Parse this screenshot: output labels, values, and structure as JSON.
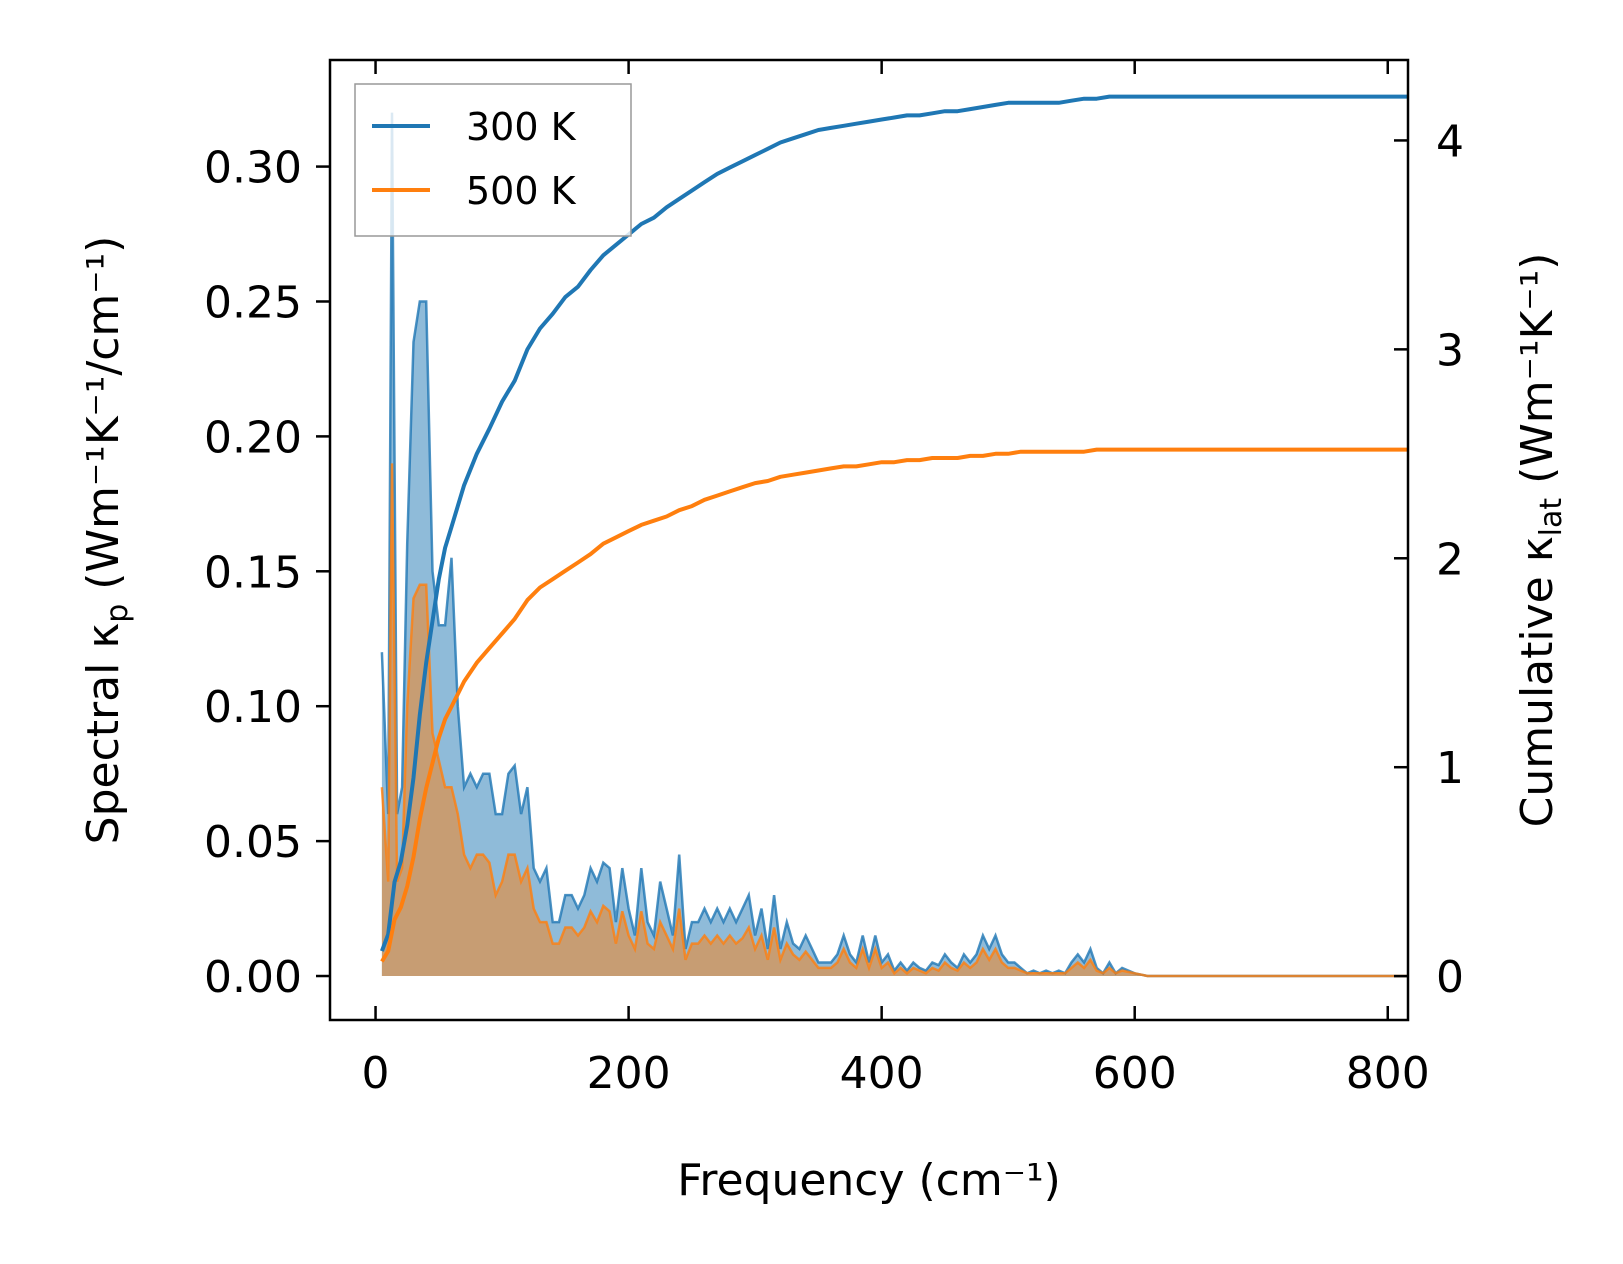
{
  "chart_data": {
    "type": "line",
    "title": "",
    "xlabel": "Frequency (cm⁻¹)",
    "ylabel_left": {
      "prefix": "Spectral κ",
      "sub": "p",
      "suffix": " (Wm⁻¹K⁻¹/cm⁻¹)"
    },
    "ylabel_right": {
      "prefix": "Cumulative κ",
      "sub": "lat",
      "suffix": " (Wm⁻¹K⁻¹)"
    },
    "xlim": [
      -36,
      816
    ],
    "ylim_left": [
      -0.0163,
      0.3395
    ],
    "ylim_right": [
      -0.21,
      4.385
    ],
    "x_ticks": [
      "0",
      "200",
      "400",
      "600",
      "800"
    ],
    "y_left_ticks": [
      "0.00",
      "0.05",
      "0.10",
      "0.15",
      "0.20",
      "0.25",
      "0.30"
    ],
    "y_right_ticks": [
      "0",
      "1",
      "2",
      "3",
      "4"
    ],
    "legend": {
      "position": "top-left",
      "entries": [
        "300 K",
        "500 K"
      ]
    },
    "colors": {
      "300 K": "#1f77b4",
      "500 K": "#ff7f0e"
    },
    "spectral_x": [
      5,
      10,
      13,
      17,
      21,
      25,
      30,
      35,
      40,
      45,
      50,
      55,
      60,
      65,
      70,
      75,
      80,
      85,
      90,
      95,
      100,
      105,
      110,
      115,
      120,
      125,
      130,
      135,
      140,
      145,
      150,
      155,
      160,
      165,
      170,
      175,
      180,
      185,
      190,
      195,
      200,
      205,
      210,
      215,
      220,
      225,
      230,
      235,
      240,
      245,
      250,
      255,
      260,
      265,
      270,
      275,
      280,
      285,
      290,
      295,
      300,
      305,
      310,
      315,
      320,
      325,
      330,
      335,
      340,
      345,
      350,
      355,
      360,
      365,
      370,
      375,
      380,
      385,
      390,
      395,
      400,
      405,
      410,
      415,
      420,
      425,
      430,
      435,
      440,
      445,
      450,
      455,
      460,
      465,
      470,
      475,
      480,
      485,
      490,
      495,
      500,
      505,
      510,
      515,
      520,
      525,
      530,
      535,
      540,
      545,
      550,
      555,
      560,
      565,
      570,
      575,
      580,
      585,
      590,
      600,
      610,
      700,
      816
    ],
    "series_spectral": [
      {
        "name": "300 K",
        "values": [
          0.12,
          0.06,
          0.32,
          0.06,
          0.07,
          0.16,
          0.235,
          0.25,
          0.25,
          0.15,
          0.13,
          0.13,
          0.155,
          0.1,
          0.07,
          0.075,
          0.07,
          0.075,
          0.075,
          0.06,
          0.06,
          0.075,
          0.078,
          0.06,
          0.07,
          0.04,
          0.035,
          0.04,
          0.02,
          0.02,
          0.03,
          0.03,
          0.025,
          0.03,
          0.04,
          0.035,
          0.042,
          0.04,
          0.02,
          0.04,
          0.025,
          0.015,
          0.04,
          0.02,
          0.015,
          0.035,
          0.025,
          0.015,
          0.045,
          0.01,
          0.02,
          0.02,
          0.025,
          0.02,
          0.025,
          0.02,
          0.025,
          0.02,
          0.025,
          0.03,
          0.015,
          0.025,
          0.01,
          0.03,
          0.01,
          0.02,
          0.012,
          0.01,
          0.015,
          0.01,
          0.005,
          0.005,
          0.005,
          0.008,
          0.015,
          0.008,
          0.005,
          0.015,
          0.005,
          0.015,
          0.005,
          0.008,
          0.002,
          0.005,
          0.002,
          0.005,
          0.003,
          0.002,
          0.005,
          0.004,
          0.008,
          0.005,
          0.003,
          0.008,
          0.005,
          0.008,
          0.015,
          0.01,
          0.015,
          0.008,
          0.005,
          0.005,
          0.003,
          0.001,
          0.002,
          0.001,
          0.002,
          0.001,
          0.002,
          0.001,
          0.005,
          0.008,
          0.005,
          0.01,
          0.003,
          0.001,
          0.005,
          0.001,
          0.003,
          0.001,
          0.0,
          0.0,
          0.0
        ]
      },
      {
        "name": "500 K",
        "values": [
          0.07,
          0.035,
          0.19,
          0.035,
          0.04,
          0.1,
          0.14,
          0.145,
          0.145,
          0.09,
          0.08,
          0.07,
          0.07,
          0.06,
          0.045,
          0.04,
          0.045,
          0.045,
          0.042,
          0.03,
          0.035,
          0.045,
          0.045,
          0.035,
          0.04,
          0.025,
          0.02,
          0.02,
          0.012,
          0.012,
          0.018,
          0.018,
          0.015,
          0.018,
          0.024,
          0.02,
          0.026,
          0.024,
          0.012,
          0.024,
          0.015,
          0.01,
          0.024,
          0.012,
          0.01,
          0.02,
          0.015,
          0.01,
          0.025,
          0.006,
          0.012,
          0.012,
          0.015,
          0.012,
          0.015,
          0.012,
          0.015,
          0.012,
          0.014,
          0.018,
          0.01,
          0.015,
          0.006,
          0.018,
          0.006,
          0.012,
          0.008,
          0.006,
          0.009,
          0.006,
          0.003,
          0.003,
          0.003,
          0.005,
          0.01,
          0.005,
          0.003,
          0.01,
          0.003,
          0.01,
          0.003,
          0.005,
          0.001,
          0.003,
          0.001,
          0.003,
          0.002,
          0.001,
          0.003,
          0.002,
          0.005,
          0.003,
          0.002,
          0.005,
          0.003,
          0.005,
          0.01,
          0.006,
          0.01,
          0.005,
          0.003,
          0.003,
          0.002,
          0.001,
          0.001,
          0.001,
          0.001,
          0.001,
          0.001,
          0.001,
          0.003,
          0.005,
          0.003,
          0.006,
          0.002,
          0.001,
          0.003,
          0.001,
          0.002,
          0.001,
          0.0,
          0.0,
          0.0
        ]
      }
    ],
    "cumulative_x": [
      5,
      10,
      15,
      20,
      25,
      30,
      35,
      40,
      45,
      50,
      55,
      60,
      65,
      70,
      80,
      90,
      100,
      110,
      120,
      130,
      140,
      150,
      160,
      170,
      180,
      190,
      200,
      210,
      220,
      230,
      240,
      250,
      260,
      270,
      280,
      290,
      300,
      310,
      320,
      330,
      340,
      350,
      360,
      370,
      380,
      390,
      400,
      410,
      420,
      430,
      440,
      450,
      460,
      470,
      480,
      490,
      500,
      510,
      520,
      530,
      540,
      550,
      560,
      570,
      580,
      590,
      600,
      650,
      700,
      750,
      816
    ],
    "series_cumulative": [
      {
        "name": "300 K",
        "values": [
          0.12,
          0.2,
          0.45,
          0.55,
          0.72,
          0.95,
          1.25,
          1.5,
          1.7,
          1.9,
          2.05,
          2.15,
          2.25,
          2.35,
          2.5,
          2.62,
          2.75,
          2.85,
          3.0,
          3.1,
          3.17,
          3.25,
          3.3,
          3.38,
          3.45,
          3.5,
          3.55,
          3.6,
          3.63,
          3.68,
          3.72,
          3.76,
          3.8,
          3.84,
          3.87,
          3.9,
          3.93,
          3.96,
          3.99,
          4.01,
          4.03,
          4.05,
          4.06,
          4.07,
          4.08,
          4.09,
          4.1,
          4.11,
          4.12,
          4.12,
          4.13,
          4.14,
          4.14,
          4.15,
          4.16,
          4.17,
          4.18,
          4.18,
          4.18,
          4.18,
          4.18,
          4.19,
          4.2,
          4.2,
          4.21,
          4.21,
          4.21,
          4.21,
          4.21,
          4.21,
          4.21
        ]
      },
      {
        "name": "500 K",
        "values": [
          0.07,
          0.12,
          0.27,
          0.33,
          0.43,
          0.57,
          0.75,
          0.9,
          1.02,
          1.14,
          1.23,
          1.29,
          1.35,
          1.41,
          1.5,
          1.57,
          1.64,
          1.71,
          1.8,
          1.86,
          1.9,
          1.94,
          1.98,
          2.02,
          2.07,
          2.1,
          2.13,
          2.16,
          2.18,
          2.2,
          2.23,
          2.25,
          2.28,
          2.3,
          2.32,
          2.34,
          2.36,
          2.37,
          2.39,
          2.4,
          2.41,
          2.42,
          2.43,
          2.44,
          2.44,
          2.45,
          2.46,
          2.46,
          2.47,
          2.47,
          2.48,
          2.48,
          2.48,
          2.49,
          2.49,
          2.5,
          2.5,
          2.51,
          2.51,
          2.51,
          2.51,
          2.51,
          2.51,
          2.52,
          2.52,
          2.52,
          2.52,
          2.52,
          2.52,
          2.52,
          2.52
        ]
      }
    ]
  }
}
